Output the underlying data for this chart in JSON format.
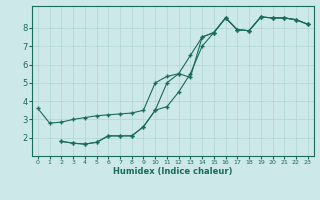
{
  "xlabel": "Humidex (Indice chaleur)",
  "bg_color": "#cce8e8",
  "grid_color": "#b0d4d4",
  "line_color": "#1a6b5a",
  "xlim": [
    -0.5,
    23.5
  ],
  "ylim": [
    1.0,
    9.2
  ],
  "xticks": [
    0,
    1,
    2,
    3,
    4,
    5,
    6,
    7,
    8,
    9,
    10,
    11,
    12,
    13,
    14,
    15,
    16,
    17,
    18,
    19,
    20,
    21,
    22,
    23
  ],
  "yticks": [
    2,
    3,
    4,
    5,
    6,
    7,
    8
  ],
  "line1_x": [
    0,
    1,
    2,
    3,
    4,
    5,
    6,
    7,
    8,
    9,
    10,
    11,
    12,
    13,
    14,
    15,
    16,
    17,
    18,
    19,
    20,
    21,
    22,
    23
  ],
  "line1_y": [
    3.6,
    2.8,
    2.85,
    3.0,
    3.1,
    3.2,
    3.25,
    3.3,
    3.35,
    3.5,
    5.0,
    5.35,
    5.5,
    5.3,
    7.5,
    7.75,
    8.55,
    7.9,
    7.85,
    8.6,
    8.55,
    8.55,
    8.45,
    8.2
  ],
  "line2_x": [
    2,
    3,
    4,
    5,
    6,
    7,
    8,
    9,
    10,
    11,
    12,
    13,
    14,
    15,
    16,
    17,
    18,
    19,
    20,
    21,
    22,
    23
  ],
  "line2_y": [
    1.8,
    1.7,
    1.65,
    1.75,
    2.1,
    2.1,
    2.1,
    2.6,
    3.5,
    3.7,
    4.5,
    5.5,
    7.0,
    7.75,
    8.55,
    7.9,
    7.85,
    8.6,
    8.55,
    8.55,
    8.45,
    8.2
  ],
  "line3_x": [
    2,
    3,
    4,
    5,
    6,
    7,
    8,
    9,
    10,
    11,
    12,
    13,
    14,
    15,
    16,
    17,
    18,
    19,
    20,
    21,
    22,
    23
  ],
  "line3_y": [
    1.8,
    1.7,
    1.65,
    1.75,
    2.1,
    2.1,
    2.1,
    2.6,
    3.5,
    5.0,
    5.5,
    6.5,
    7.5,
    7.75,
    8.55,
    7.9,
    7.85,
    8.6,
    8.55,
    8.55,
    8.45,
    8.2
  ]
}
